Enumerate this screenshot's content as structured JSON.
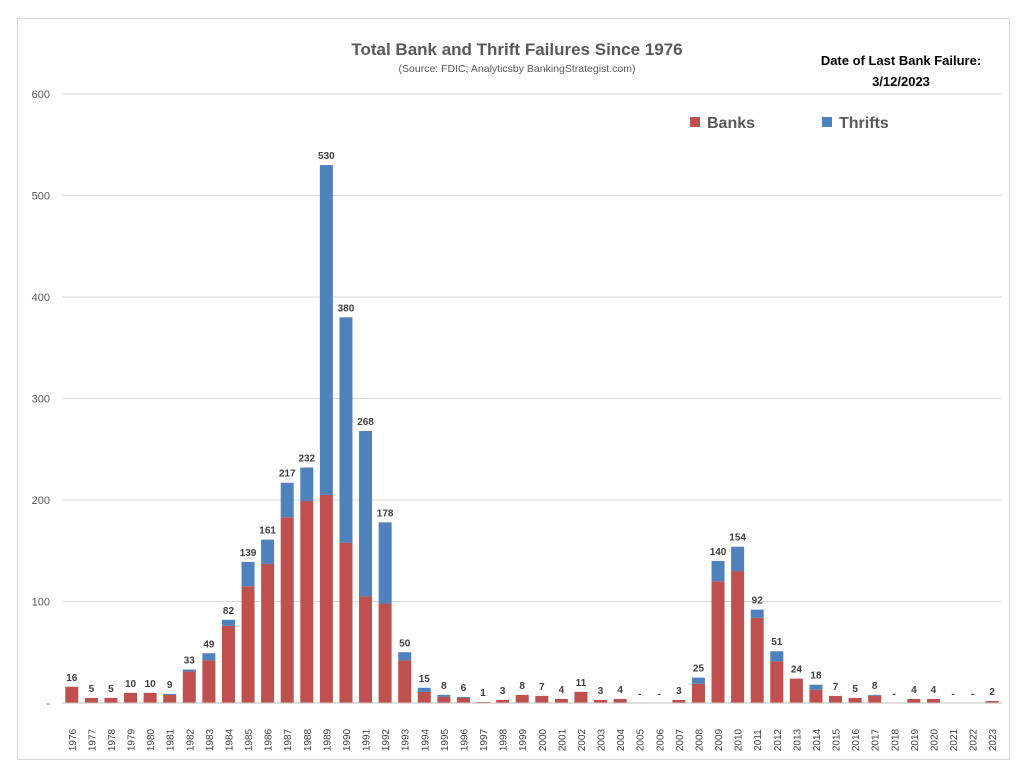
{
  "chart_data": {
    "type": "bar",
    "stacked": true,
    "title": "Total Bank and Thrift Failures Since 1976",
    "subtitle": "(Source: FDIC; Analyticsby BankingStrategist.com)",
    "annotation": {
      "label": "Date of Last Bank Failure:",
      "date": "3/12/2023"
    },
    "legend_position": "top-right",
    "grid": true,
    "ylim": [
      0,
      600
    ],
    "yticks": [
      "-",
      "100",
      "200",
      "300",
      "400",
      "500",
      "600"
    ],
    "categories": [
      "1976",
      "1977",
      "1978",
      "1979",
      "1980",
      "1981",
      "1982",
      "1983",
      "1984",
      "1985",
      "1986",
      "1987",
      "1988",
      "1989",
      "1990",
      "1991",
      "1992",
      "1993",
      "1994",
      "1995",
      "1996",
      "1997",
      "1998",
      "1999",
      "2000",
      "2001",
      "2002",
      "2003",
      "2004",
      "2005",
      "2006",
      "2007",
      "2008",
      "2009",
      "2010",
      "2011",
      "2012",
      "2013",
      "2014",
      "2015",
      "2016",
      "2017",
      "2018",
      "2019",
      "2020",
      "2021",
      "2022",
      "2023"
    ],
    "series": [
      {
        "name": "Banks",
        "color": "#c0504d",
        "values": [
          16,
          5,
          5,
          10,
          10,
          8,
          31,
          42,
          76,
          115,
          137,
          183,
          199,
          205,
          158,
          105,
          98,
          42,
          11,
          6,
          5,
          1,
          3,
          8,
          7,
          4,
          11,
          3,
          4,
          0,
          0,
          3,
          19,
          120,
          130,
          84,
          41,
          24,
          13,
          7,
          5,
          7,
          0,
          4,
          4,
          0,
          0,
          2
        ]
      },
      {
        "name": "Thrifts",
        "color": "#4f81bd",
        "values": [
          0,
          0,
          0,
          0,
          0,
          1,
          2,
          7,
          6,
          24,
          24,
          34,
          33,
          325,
          222,
          163,
          80,
          8,
          4,
          2,
          1,
          0,
          0,
          0,
          0,
          0,
          0,
          0,
          0,
          0,
          0,
          0,
          6,
          20,
          24,
          8,
          10,
          0,
          5,
          0,
          0,
          1,
          0,
          0,
          0,
          0,
          0,
          0
        ]
      }
    ],
    "totals": [
      "16",
      "5",
      "5",
      "10",
      "10",
      "9",
      "33",
      "49",
      "82",
      "139",
      "161",
      "217",
      "232",
      "530",
      "380",
      "268",
      "178",
      "50",
      "15",
      "8",
      "6",
      "1",
      "3",
      "8",
      "7",
      "4",
      "11",
      "3",
      "4",
      "-",
      "-",
      "3",
      "25",
      "140",
      "154",
      "92",
      "51",
      "24",
      "18",
      "7",
      "5",
      "8",
      "-",
      "4",
      "4",
      "-",
      "-",
      "2"
    ]
  }
}
